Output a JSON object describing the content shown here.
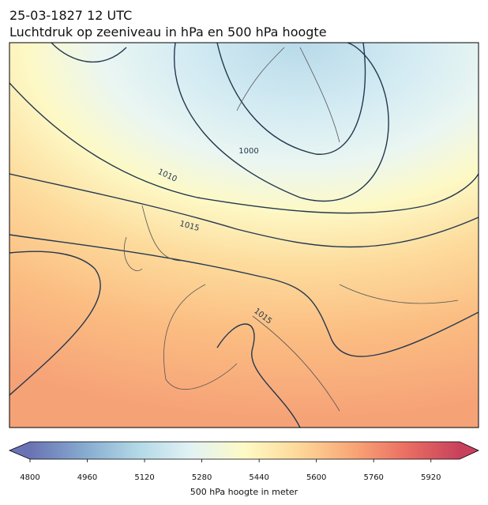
{
  "title": "25-03-1827 12 UTC",
  "subtitle": "Luchtdruk op zeeniveau in hPa en 500 hPa hoogte",
  "contour_labels": [
    1000,
    1010,
    1015,
    1015
  ],
  "colorbar": {
    "label": "500 hPa hoogte in meter",
    "lim": [
      4800,
      6000
    ],
    "ticks": [
      4800,
      4960,
      5120,
      5280,
      5440,
      5600,
      5760,
      5920
    ],
    "colormap": [
      "#6a73b4",
      "#86aacf",
      "#b2d8e7",
      "#e2f2f4",
      "#fefac6",
      "#fdd899",
      "#f9a777",
      "#ea6f63",
      "#c8415c"
    ]
  }
}
